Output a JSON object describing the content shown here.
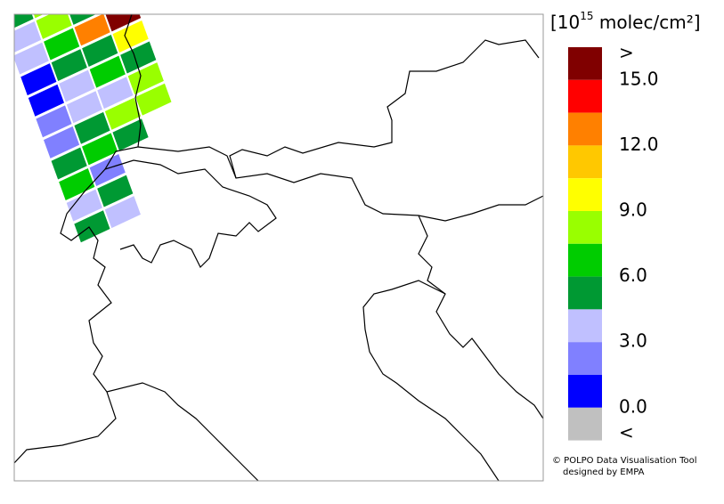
{
  "legend": {
    "title_prefix": "[10",
    "title_exponent": "15",
    "title_suffix": " molec/cm²]",
    "colors": [
      "#800000",
      "#ff0000",
      "#ff8000",
      "#ffc800",
      "#ffff00",
      "#99ff00",
      "#00cc00",
      "#009933",
      "#c0c0ff",
      "#8080ff",
      "#0000ff",
      "#c0c0c0"
    ],
    "labels": [
      ">",
      "15.0",
      "12.0",
      "9.0",
      "6.0",
      "3.0",
      "0.0",
      "<"
    ]
  },
  "swath": [
    [
      "#009933",
      "#99ff00",
      "#ffc800",
      "#ff8000"
    ],
    [
      "#c0c0ff",
      "#99ff00",
      "#009933",
      "#ff8000"
    ],
    [
      "#c0c0ff",
      "#00cc00",
      "#ff8000",
      "#800000"
    ],
    [
      "#0000ff",
      "#009933",
      "#009933",
      "#ffff00"
    ],
    [
      "#0000ff",
      "#c0c0ff",
      "#00cc00",
      "#009933"
    ],
    [
      "#8080ff",
      "#c0c0ff",
      "#c0c0ff",
      "#99ff00"
    ],
    [
      "#8080ff",
      "#009933",
      "#99ff00",
      "#99ff00"
    ],
    [
      "#009933",
      "#00cc00",
      "#009933",
      "#ffffff"
    ],
    [
      "#00cc00",
      "#8080ff",
      "#ffffff",
      "#ffffff"
    ],
    [
      "#c0c0ff",
      "#009933",
      "#ffffff",
      "#ffffff"
    ],
    [
      "#009933",
      "#c0c0ff",
      "#ffffff",
      "#ffffff"
    ]
  ],
  "credits": [
    "© POLPO Data Visualisation Tool",
    "designed by EMPA"
  ]
}
